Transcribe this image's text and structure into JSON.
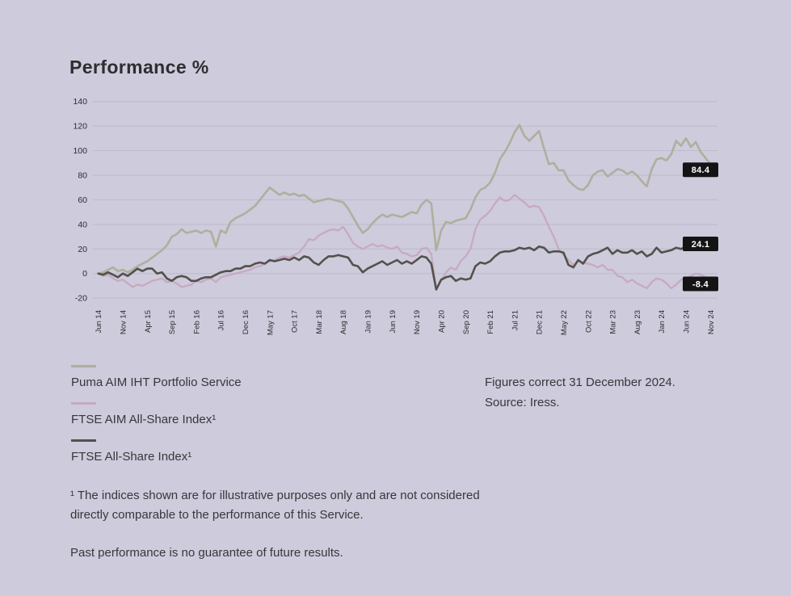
{
  "title": "Performance %",
  "colors": {
    "background": "#cdcbdc",
    "gridline": "#bdbacb",
    "axis_text": "#2e2d2f",
    "end_label_box": "#141414",
    "end_label_text": "#ffffff"
  },
  "chart_data": {
    "type": "line",
    "title": "Performance %",
    "xlabel": "",
    "ylabel": "",
    "grid": "horizontal",
    "y_ticks": [
      140,
      120,
      100,
      80,
      60,
      40,
      20,
      0,
      -20
    ],
    "ylim": [
      -28,
      148
    ],
    "x_tick_labels": [
      "Jun 14",
      "Nov 14",
      "Apr 15",
      "Sep 15",
      "Feb 16",
      "Jul 16",
      "Dec 16",
      "May 17",
      "Oct 17",
      "Mar 18",
      "Aug 18",
      "Jan 19",
      "Jun 19",
      "Nov 19",
      "Apr 20",
      "Sep 20",
      "Feb 21",
      "Jul 21",
      "Dec 21",
      "May 22",
      "Oct 22",
      "Mar 23",
      "Aug 23",
      "Jan 24",
      "Jun 24",
      "Nov 24"
    ],
    "months_per_tick": 5,
    "series": [
      {
        "name": "Puma AIM IHT Portfolio Service",
        "color": "#b1ae9d",
        "stroke_width": 2.6,
        "end_label": "84.4",
        "values": [
          0,
          1,
          3,
          5,
          2,
          3,
          1,
          3,
          6,
          8,
          10,
          13,
          16,
          19,
          23,
          30,
          32,
          36,
          33,
          34,
          35,
          33,
          35,
          34,
          22,
          35,
          33,
          42,
          45,
          47,
          49,
          52,
          55,
          60,
          65,
          70,
          67,
          64,
          66,
          64,
          65,
          63,
          64,
          61,
          58,
          59,
          60,
          61,
          60,
          59,
          58,
          53,
          46,
          39,
          33,
          36,
          41,
          45,
          48,
          46,
          48,
          47,
          46,
          48,
          50,
          49,
          56,
          60,
          57,
          19,
          35,
          42,
          41,
          43,
          44,
          45,
          52,
          62,
          68,
          70,
          74,
          82,
          93,
          99,
          106,
          115,
          121,
          112,
          108,
          112,
          116,
          102,
          89,
          90,
          84,
          84,
          76,
          72,
          69,
          68,
          72,
          80,
          83,
          84,
          79,
          82,
          85,
          84,
          81,
          83,
          80,
          75,
          71,
          85,
          93,
          94,
          92,
          97,
          108,
          104,
          110,
          103,
          107,
          99,
          94,
          89,
          84.4
        ]
      },
      {
        "name": "FTSE AIM All-Share Index",
        "color": "#c7a8c2",
        "stroke_width": 2.2,
        "end_label": "-8.4",
        "values": [
          0,
          -2,
          -1,
          -4,
          -6,
          -5,
          -8,
          -11,
          -9,
          -10,
          -8,
          -6,
          -5,
          -4,
          -7,
          -6,
          -8,
          -11,
          -10,
          -9,
          -6,
          -7,
          -5,
          -4,
          -7,
          -3,
          -2,
          -1,
          0,
          1,
          2,
          3,
          5,
          6,
          8,
          10,
          11,
          13,
          14,
          13,
          15,
          17,
          22,
          28,
          27,
          31,
          33,
          35,
          36,
          35,
          38,
          32,
          25,
          22,
          20,
          22,
          24,
          22,
          23,
          21,
          20,
          22,
          17,
          16,
          14,
          15,
          20,
          21,
          16,
          -13,
          -6,
          1,
          5,
          3,
          10,
          14,
          20,
          36,
          44,
          47,
          51,
          57,
          62,
          59,
          60,
          64,
          61,
          58,
          54,
          55,
          54,
          47,
          38,
          30,
          20,
          15,
          11,
          7,
          10,
          9,
          8,
          7,
          5,
          7,
          3,
          3,
          -2,
          -3,
          -7,
          -5,
          -8,
          -10,
          -12,
          -7,
          -4,
          -5,
          -8,
          -12,
          -9,
          -5,
          -4,
          -2,
          0,
          -1,
          -3,
          -5,
          -8.4
        ]
      },
      {
        "name": "FTSE All-Share Index",
        "color": "#52514c",
        "stroke_width": 2.6,
        "end_label": "24.1",
        "values": [
          0,
          -1,
          1,
          -1,
          -3,
          0,
          -2,
          1,
          4,
          2,
          4,
          4,
          0,
          1,
          -4,
          -6,
          -3,
          -2,
          -3,
          -6,
          -6,
          -4,
          -3,
          -3,
          -1,
          1,
          2,
          2,
          4,
          4,
          6,
          6,
          8,
          9,
          8,
          11,
          10,
          11,
          12,
          11,
          13,
          11,
          14,
          13,
          9,
          7,
          11,
          14,
          14,
          15,
          14,
          13,
          7,
          6,
          1,
          4,
          6,
          8,
          10,
          7,
          9,
          11,
          8,
          10,
          8,
          11,
          14,
          13,
          8,
          -13,
          -5,
          -3,
          -2,
          -6,
          -4,
          -5,
          -4,
          6,
          9,
          8,
          10,
          14,
          17,
          18,
          18,
          19,
          21,
          20,
          21,
          19,
          22,
          21,
          17,
          18,
          18,
          17,
          7,
          5,
          11,
          8,
          14,
          16,
          17,
          19,
          21,
          16,
          19,
          17,
          17,
          19,
          16,
          18,
          14,
          16,
          21,
          17,
          18,
          19,
          21,
          20,
          22,
          23,
          21,
          24,
          23,
          25,
          24.1
        ]
      }
    ]
  },
  "legend": {
    "items": [
      {
        "label": "Puma AIM IHT Portfolio Service",
        "color": "#b1ae9d"
      },
      {
        "label": "FTSE AIM All-Share Index¹",
        "color": "#c7a8c2"
      },
      {
        "label": "FTSE All-Share Index¹",
        "color": "#52514c"
      }
    ]
  },
  "source_note": {
    "line1": "Figures correct 31 December 2024.",
    "line2": "Source: Iress."
  },
  "footnotes": {
    "note1_line1": "¹ The indices shown are for illustrative purposes only and are not considered",
    "note1_line2": "directly comparable to the performance of this Service.",
    "note2": "Past performance is no guarantee of future results."
  }
}
